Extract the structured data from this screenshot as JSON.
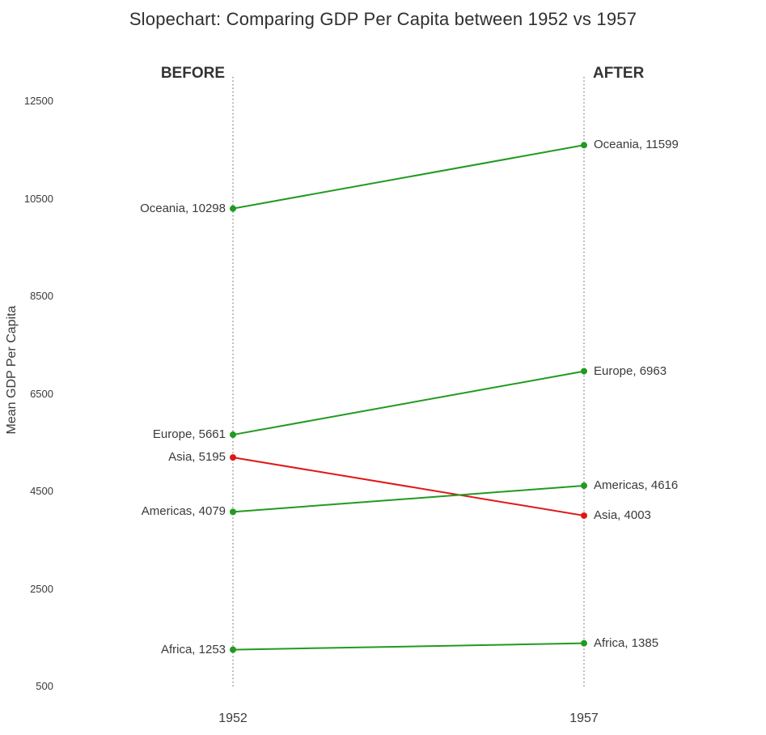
{
  "chart_data": {
    "type": "line",
    "subtype": "slopechart",
    "title": "Slopechart: Comparing GDP Per Capita between 1952 vs 1957",
    "ylabel": "Mean GDP Per Capita",
    "column_headers": {
      "before": "BEFORE",
      "after": "AFTER"
    },
    "x_categories": [
      "1952",
      "1957"
    ],
    "yticks": [
      12500,
      10500,
      8500,
      6500,
      4500,
      2500,
      500
    ],
    "ylim": [
      500,
      13000
    ],
    "grid": false,
    "legend": "none",
    "label_format": "{name}, {value}",
    "series": [
      {
        "name": "Oceania",
        "values": [
          10298,
          11599
        ],
        "trend": "increase",
        "color": "#219a21"
      },
      {
        "name": "Europe",
        "values": [
          5661,
          6963
        ],
        "trend": "increase",
        "color": "#219a21"
      },
      {
        "name": "Asia",
        "values": [
          5195,
          4003
        ],
        "trend": "decrease",
        "color": "#e01717"
      },
      {
        "name": "Americas",
        "values": [
          4079,
          4616
        ],
        "trend": "increase",
        "color": "#219a21"
      },
      {
        "name": "Africa",
        "values": [
          1253,
          1385
        ],
        "trend": "increase",
        "color": "#219a21"
      }
    ],
    "colors": {
      "increase": "#219a21",
      "decrease": "#e01717",
      "axis_text": "#3a3a3a",
      "vline": "#777777",
      "title_text": "#2f2f2f"
    }
  }
}
